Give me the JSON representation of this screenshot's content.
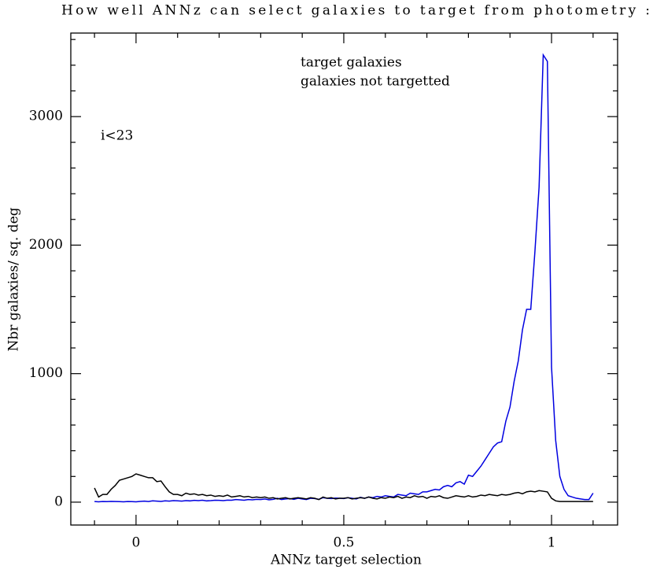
{
  "chart_data": {
    "type": "line",
    "title": "How well ANNz can select galaxies to target from photometry :",
    "x_label": "ANNz target selection",
    "y_label": "Nbr galaxies/ sq. deg",
    "annotation": "i<23",
    "xlim": [
      -0.157,
      1.159
    ],
    "ylim": [
      -178,
      3650
    ],
    "xticks": [
      0,
      0.5,
      1
    ],
    "yticks": [
      0,
      1000,
      2000,
      3000
    ],
    "xminorticks": [
      -0.1,
      0.1,
      0.2,
      0.3,
      0.4,
      0.6,
      0.7,
      0.8,
      0.9,
      1.1
    ],
    "yminorticks": [
      200,
      400,
      600,
      800,
      1200,
      1400,
      1600,
      1800,
      2200,
      2400,
      2600,
      2800,
      3200,
      3400,
      3600
    ],
    "x": [
      -0.1,
      -0.09,
      -0.08,
      -0.07,
      -0.06,
      -0.05,
      -0.04,
      -0.03,
      -0.02,
      -0.01,
      0,
      0.01,
      0.02,
      0.03,
      0.04,
      0.05,
      0.06,
      0.07,
      0.08,
      0.09,
      0.1,
      0.11,
      0.12,
      0.13,
      0.14,
      0.15,
      0.16,
      0.17,
      0.18,
      0.19,
      0.2,
      0.21,
      0.22,
      0.23,
      0.24,
      0.25,
      0.26,
      0.27,
      0.28,
      0.29,
      0.3,
      0.31,
      0.32,
      0.33,
      0.34,
      0.35,
      0.36,
      0.37,
      0.38,
      0.39,
      0.4,
      0.41,
      0.42,
      0.43,
      0.44,
      0.45,
      0.46,
      0.47,
      0.48,
      0.49,
      0.5,
      0.51,
      0.52,
      0.53,
      0.54,
      0.55,
      0.56,
      0.57,
      0.58,
      0.59,
      0.6,
      0.61,
      0.62,
      0.63,
      0.64,
      0.65,
      0.66,
      0.67,
      0.68,
      0.69,
      0.7,
      0.71,
      0.72,
      0.73,
      0.74,
      0.75,
      0.76,
      0.77,
      0.78,
      0.79,
      0.8,
      0.81,
      0.82,
      0.83,
      0.84,
      0.85,
      0.86,
      0.87,
      0.88,
      0.89,
      0.9,
      0.91,
      0.92,
      0.93,
      0.94,
      0.95,
      0.96,
      0.97,
      0.98,
      0.99,
      1,
      1.01,
      1.02,
      1.03,
      1.04,
      1.05,
      1.06,
      1.07,
      1.08,
      1.09,
      1.1
    ],
    "series": [
      {
        "name": "target galaxies",
        "color": "#0000e0",
        "values": [
          5,
          3,
          5,
          4,
          6,
          5,
          4,
          3,
          5,
          4,
          3,
          6,
          8,
          5,
          10,
          8,
          6,
          10,
          8,
          12,
          10,
          8,
          12,
          10,
          14,
          12,
          15,
          10,
          12,
          15,
          14,
          12,
          16,
          15,
          20,
          18,
          15,
          20,
          18,
          22,
          20,
          25,
          18,
          22,
          30,
          20,
          25,
          28,
          22,
          30,
          25,
          20,
          30,
          28,
          22,
          35,
          30,
          28,
          32,
          30,
          28,
          35,
          30,
          25,
          38,
          30,
          40,
          35,
          45,
          40,
          50,
          45,
          40,
          60,
          55,
          50,
          70,
          65,
          60,
          80,
          80,
          90,
          100,
          95,
          120,
          130,
          120,
          150,
          160,
          140,
          210,
          200,
          240,
          280,
          330,
          380,
          430,
          460,
          470,
          630,
          740,
          940,
          1100,
          1340,
          1500,
          1500,
          1950,
          2450,
          3480,
          3430,
          1050,
          480,
          200,
          100,
          50,
          40,
          30,
          25,
          20,
          20,
          70
        ]
      },
      {
        "name": "galaxies not targetted",
        "color": "#000000",
        "values": [
          110,
          40,
          60,
          60,
          100,
          130,
          170,
          180,
          190,
          200,
          220,
          210,
          200,
          190,
          190,
          160,
          165,
          120,
          80,
          60,
          60,
          50,
          70,
          60,
          65,
          55,
          60,
          50,
          55,
          45,
          50,
          45,
          55,
          40,
          45,
          50,
          40,
          45,
          35,
          40,
          35,
          40,
          30,
          35,
          25,
          30,
          35,
          25,
          30,
          35,
          30,
          25,
          35,
          30,
          20,
          40,
          30,
          35,
          25,
          30,
          30,
          35,
          25,
          30,
          35,
          30,
          40,
          30,
          25,
          35,
          30,
          40,
          35,
          45,
          30,
          40,
          35,
          50,
          40,
          45,
          30,
          45,
          40,
          50,
          35,
          30,
          40,
          50,
          45,
          40,
          50,
          40,
          45,
          55,
          50,
          60,
          55,
          50,
          60,
          55,
          60,
          70,
          75,
          65,
          80,
          85,
          80,
          90,
          85,
          80,
          30,
          10,
          5,
          5,
          5,
          5,
          5,
          5,
          5,
          5,
          5
        ]
      }
    ]
  }
}
